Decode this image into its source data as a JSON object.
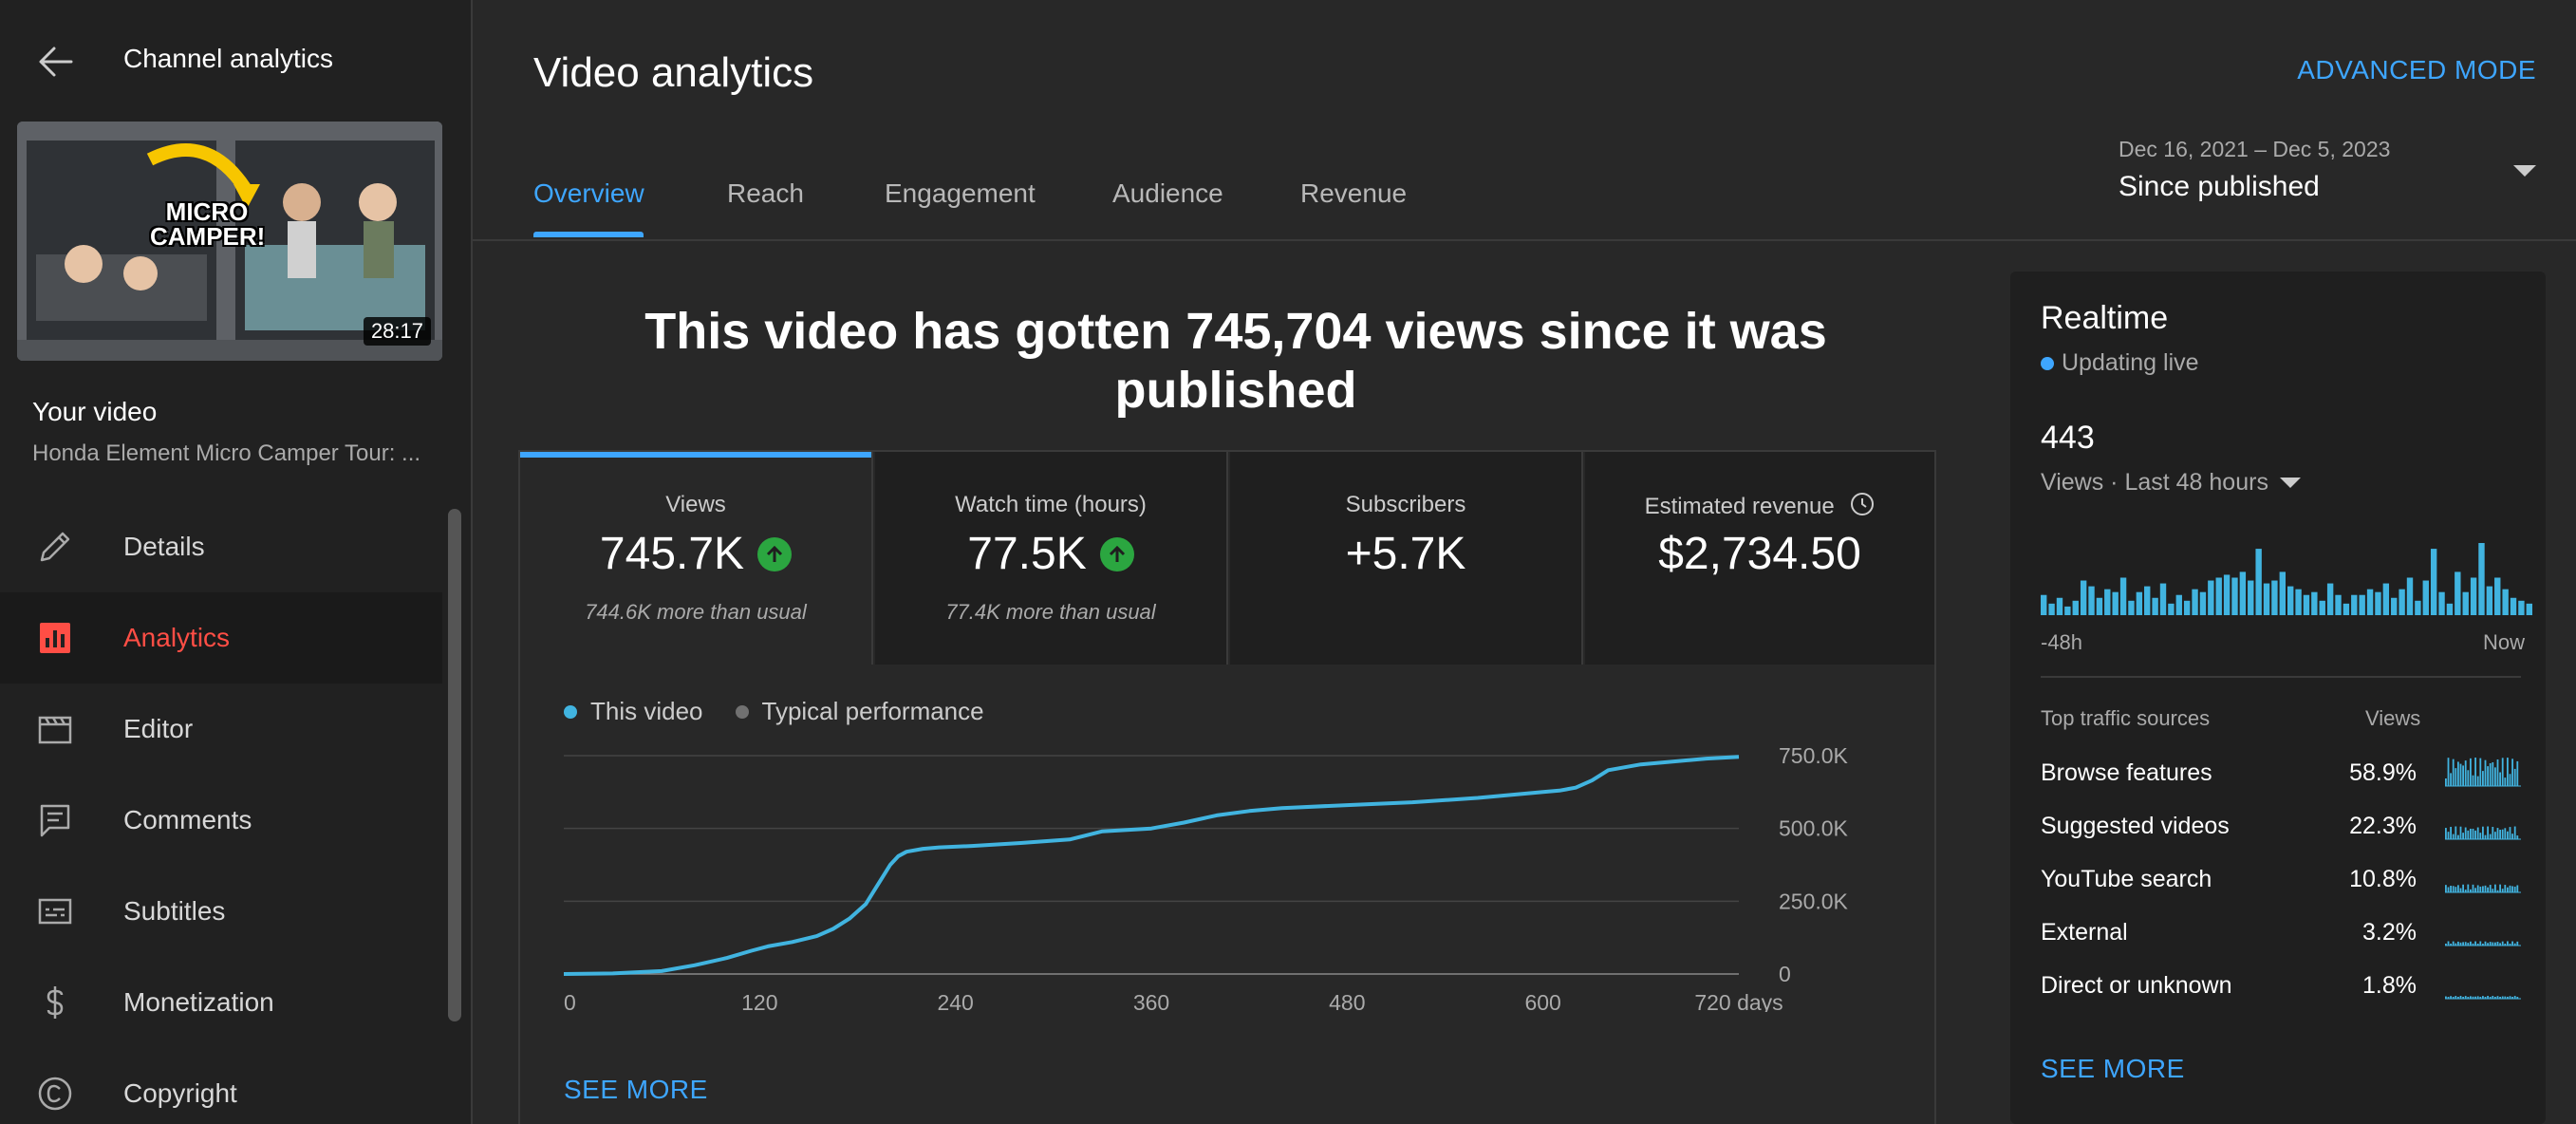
{
  "sidebar": {
    "title": "Channel analytics",
    "thumbnail_text_line1": "MICRO",
    "thumbnail_text_line2": "CAMPER!",
    "thumbnail_duration": "28:17",
    "your_video_label": "Your video",
    "video_title": "Honda Element Micro Camper Tour: ...",
    "items": [
      {
        "label": "Details",
        "icon": "pencil-icon"
      },
      {
        "label": "Analytics",
        "icon": "analytics-icon"
      },
      {
        "label": "Editor",
        "icon": "clapperboard-icon"
      },
      {
        "label": "Comments",
        "icon": "comment-icon"
      },
      {
        "label": "Subtitles",
        "icon": "subtitles-icon"
      },
      {
        "label": "Monetization",
        "icon": "dollar-icon"
      },
      {
        "label": "Copyright",
        "icon": "copyright-icon"
      }
    ]
  },
  "header": {
    "title": "Video analytics",
    "advanced_mode": "ADVANCED MODE",
    "tabs": [
      "Overview",
      "Reach",
      "Engagement",
      "Audience",
      "Revenue"
    ],
    "date_range": "Dec 16, 2021 – Dec 5, 2023",
    "date_label": "Since published"
  },
  "headline": "This video has gotten 745,704 views since it was published",
  "metrics": [
    {
      "label": "Views",
      "value": "745.7K",
      "sub": "744.6K more than usual"
    },
    {
      "label": "Watch time (hours)",
      "value": "77.5K",
      "sub": "77.4K more than usual"
    },
    {
      "label": "Subscribers",
      "value": "+5.7K",
      "sub": ""
    },
    {
      "label": "Estimated revenue",
      "value": "$2,734.50",
      "sub": ""
    }
  ],
  "legend": {
    "this_video": "This video",
    "typical": "Typical performance"
  },
  "see_more": "SEE MORE",
  "colors": {
    "accent": "#3ea6ff",
    "line": "#41b4e0",
    "active_nav": "#ff4e45",
    "up": "#2ba640",
    "typical": "#717171"
  },
  "chart_data": {
    "type": "line",
    "title": "",
    "xlabel": "",
    "ylabel": "",
    "x_tick_labels": [
      "0",
      "120",
      "240",
      "360",
      "480",
      "600",
      "720 days"
    ],
    "x_ticks": [
      0,
      120,
      240,
      360,
      480,
      600,
      720
    ],
    "y_tick_labels": [
      "0",
      "250.0K",
      "500.0K",
      "750.0K"
    ],
    "y_ticks": [
      0,
      250000,
      500000,
      750000
    ],
    "xlim": [
      0,
      720
    ],
    "ylim": [
      0,
      750000
    ],
    "series": [
      {
        "name": "This video",
        "x": [
          0,
          30,
          60,
          80,
          100,
          115,
          125,
          140,
          155,
          165,
          175,
          185,
          190,
          195,
          200,
          205,
          210,
          220,
          230,
          250,
          280,
          310,
          330,
          360,
          380,
          400,
          420,
          440,
          480,
          520,
          560,
          600,
          610,
          620,
          630,
          640,
          660,
          700,
          720
        ],
        "y": [
          0,
          2000,
          10000,
          30000,
          55000,
          80000,
          95000,
          110000,
          130000,
          155000,
          190000,
          240000,
          285000,
          330000,
          375000,
          405000,
          420000,
          430000,
          435000,
          440000,
          450000,
          462000,
          490000,
          500000,
          520000,
          545000,
          560000,
          570000,
          580000,
          590000,
          605000,
          625000,
          630000,
          640000,
          665000,
          700000,
          720000,
          740000,
          745700
        ]
      }
    ]
  },
  "realtime": {
    "title": "Realtime",
    "live": "Updating live",
    "count": "443",
    "period": "Views · Last 48 hours",
    "axis_left": "-48h",
    "axis_right": "Now",
    "th_source": "Top traffic sources",
    "th_views": "Views",
    "bars": [
      7,
      4,
      6,
      3,
      5,
      12,
      10,
      6,
      9,
      8,
      13,
      5,
      8,
      10,
      6,
      11,
      4,
      7,
      5,
      9,
      8,
      12,
      13,
      14,
      13,
      15,
      12,
      23,
      11,
      12,
      15,
      10,
      9,
      7,
      8,
      5,
      11,
      7,
      4,
      7,
      7,
      9,
      8,
      11,
      6,
      9,
      13,
      5,
      12,
      23,
      8,
      4,
      15,
      8,
      13,
      25,
      10,
      13,
      9,
      6,
      5,
      4
    ],
    "sources": [
      {
        "name": "Browse features",
        "pct": "58.9%",
        "level": 1.0
      },
      {
        "name": "Suggested videos",
        "pct": "22.3%",
        "level": 0.45
      },
      {
        "name": "YouTube search",
        "pct": "10.8%",
        "level": 0.28
      },
      {
        "name": "External",
        "pct": "3.2%",
        "level": 0.15
      },
      {
        "name": "Direct or unknown",
        "pct": "1.8%",
        "level": 0.1
      }
    ],
    "see_more": "SEE MORE"
  }
}
